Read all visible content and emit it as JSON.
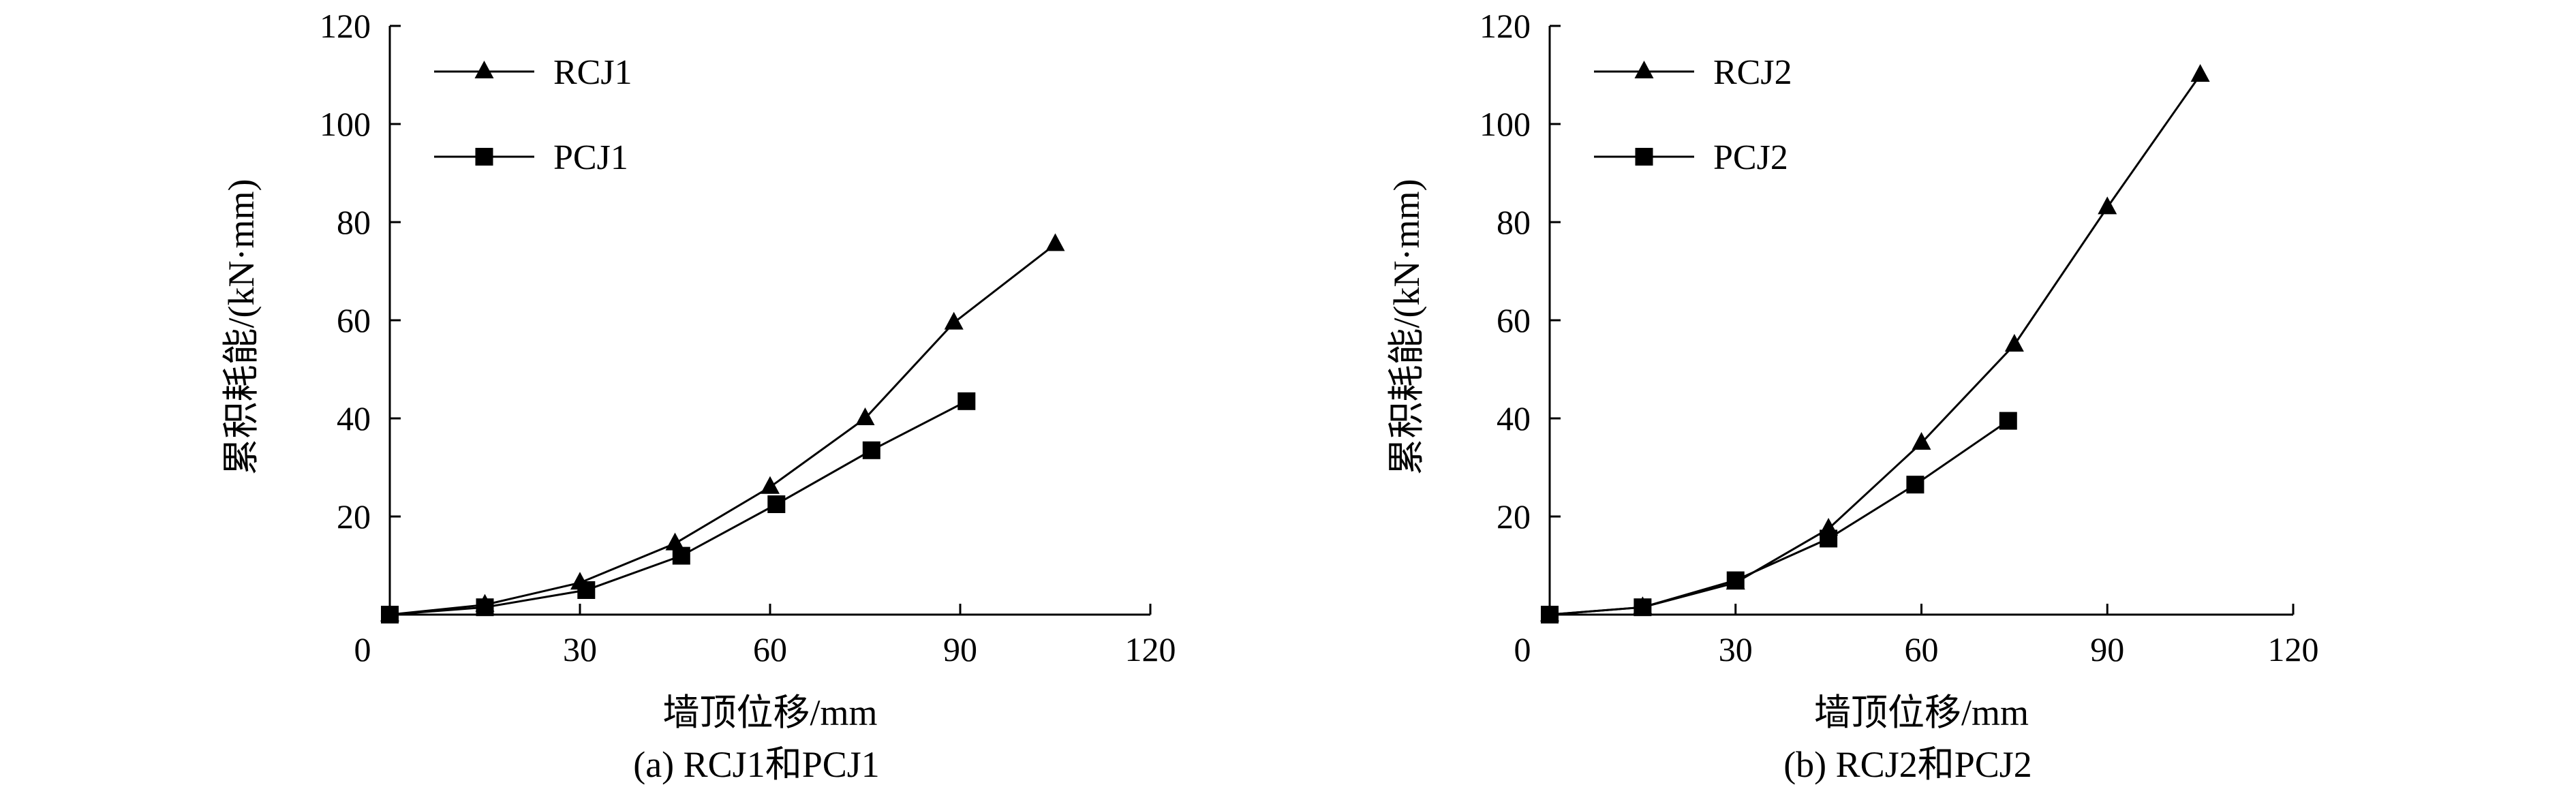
{
  "chart_data": [
    {
      "type": "line",
      "caption": "(a) RCJ1和PCJ1",
      "xlabel": "墙顶位移/mm",
      "ylabel": "累积耗能/(kN·mm)",
      "xlim": [
        0,
        120
      ],
      "ylim": [
        0,
        120
      ],
      "x_ticks": [
        0,
        30,
        60,
        90,
        120
      ],
      "y_ticks": [
        20,
        40,
        60,
        80,
        100,
        120
      ],
      "legend_position": "top-left",
      "series": [
        {
          "name": "RCJ1",
          "marker": "triangle",
          "x": [
            0,
            15,
            30,
            45,
            60,
            75,
            89,
            105
          ],
          "y": [
            0,
            2,
            6.5,
            14.5,
            26,
            40,
            59.5,
            75.5
          ]
        },
        {
          "name": "PCJ1",
          "marker": "square",
          "x": [
            0,
            15,
            31,
            46,
            61,
            76,
            91
          ],
          "y": [
            0,
            1.5,
            5,
            12,
            22.5,
            33.5,
            43.5
          ]
        }
      ]
    },
    {
      "type": "line",
      "caption": "(b) RCJ2和PCJ2",
      "xlabel": "墙顶位移/mm",
      "ylabel": "累积耗能/(kN·mm)",
      "xlim": [
        0,
        120
      ],
      "ylim": [
        0,
        120
      ],
      "x_ticks": [
        0,
        30,
        60,
        90,
        120
      ],
      "y_ticks": [
        20,
        40,
        60,
        80,
        100,
        120
      ],
      "legend_position": "top-left",
      "series": [
        {
          "name": "RCJ2",
          "marker": "triangle",
          "x": [
            0,
            15,
            30,
            45,
            60,
            75,
            90,
            105
          ],
          "y": [
            0,
            1.5,
            6.5,
            17.5,
            35,
            55,
            83,
            110
          ]
        },
        {
          "name": "PCJ2",
          "marker": "square",
          "x": [
            0,
            15,
            30,
            45,
            59,
            74
          ],
          "y": [
            0,
            1.5,
            7,
            15.5,
            26.5,
            39.5
          ]
        }
      ]
    }
  ]
}
